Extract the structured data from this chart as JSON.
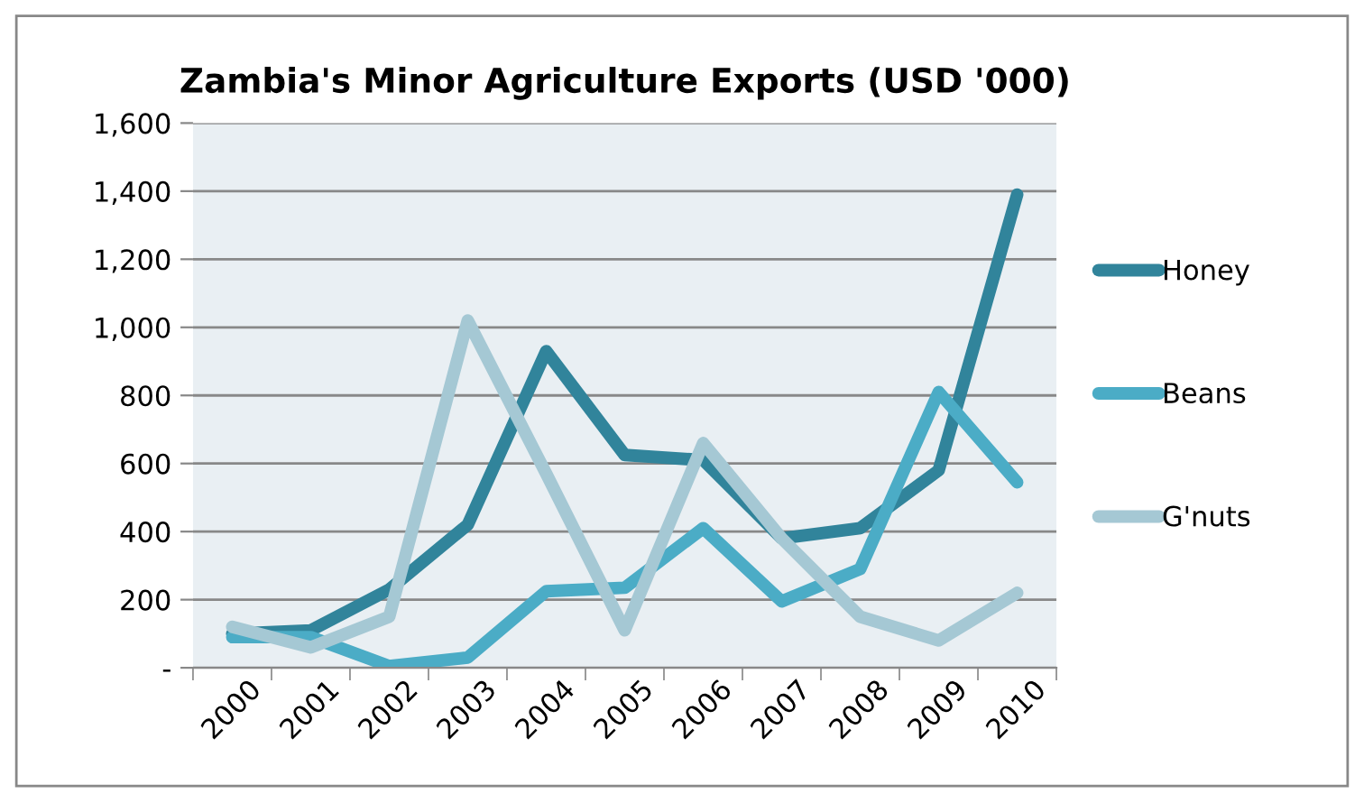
{
  "chart_data": {
    "type": "line",
    "title": "Zambia's Minor Agriculture Exports (USD '000)",
    "categories": [
      "2000",
      "2001",
      "2002",
      "2003",
      "2004",
      "2005",
      "2006",
      "2007",
      "2008",
      "2009",
      "2010"
    ],
    "series": [
      {
        "name": "Honey",
        "color": "#31849b",
        "values": [
          100,
          110,
          230,
          420,
          930,
          625,
          610,
          380,
          410,
          580,
          1390
        ]
      },
      {
        "name": "Beans",
        "color": "#4bacc6",
        "values": [
          90,
          90,
          5,
          30,
          225,
          235,
          410,
          195,
          290,
          810,
          545
        ]
      },
      {
        "name": "G'nuts",
        "color": "#a5c8d4",
        "values": [
          120,
          60,
          150,
          1020,
          570,
          110,
          660,
          380,
          150,
          80,
          220
        ]
      }
    ],
    "ylim": [
      0,
      1600
    ],
    "yticks": [
      {
        "value": 0,
        "label": "-"
      },
      200,
      400,
      600,
      800,
      {
        "value": 1000,
        "label": "1,000"
      },
      {
        "value": 1200,
        "label": "1,200"
      },
      {
        "value": 1400,
        "label": "1,400"
      },
      {
        "value": 1600,
        "label": "1,600"
      }
    ],
    "grid": "y",
    "legend": "right",
    "marker": "none",
    "line_style": "solid"
  }
}
